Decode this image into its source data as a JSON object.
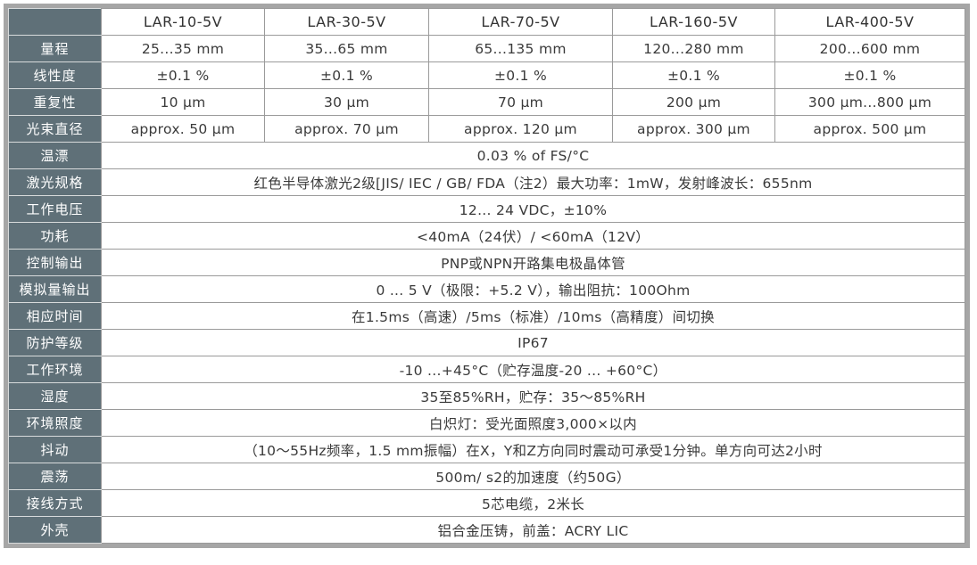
{
  "colors": {
    "label_column_bg": "#5f7078",
    "label_text": "#ffffff",
    "cell_text": "#3a3a3a",
    "outer_frame": "#a6a6a6",
    "cell_border": "#9a9a9a",
    "label_separator": "#d8dbdc"
  },
  "table": {
    "corner_label": "",
    "columns": [
      "LAR-10-5V",
      "LAR-30-5V",
      "LAR-70-5V",
      "LAR-160-5V",
      "LAR-400-5V"
    ],
    "rows": [
      {
        "label": "量程",
        "cells": [
          "25...35 mm",
          "35...65 mm",
          "65...135 mm",
          "120...280 mm",
          "200...600 mm"
        ]
      },
      {
        "label": "线性度",
        "cells": [
          "±0.1 %",
          "±0.1 %",
          "±0.1 %",
          "±0.1 %",
          "±0.1 %"
        ]
      },
      {
        "label": "重复性",
        "cells": [
          "10 μm",
          "30 μm",
          "70 μm",
          "200 μm",
          "300 μm...800 μm"
        ]
      },
      {
        "label": "光束直径",
        "cells": [
          "approx. 50 μm",
          "approx. 70 μm",
          "approx. 120 μm",
          "approx. 300 μm",
          "approx. 500 μm"
        ]
      },
      {
        "label": "温漂",
        "span": "0.03 % of FS/°C"
      },
      {
        "label": "激光规格",
        "span": "红色半导体激光2级[JIS/ IEC / GB/ FDA（注2）最大功率：1mW，发射峰波长：655nm"
      },
      {
        "label": "工作电压",
        "span": "12... 24 VDC，±10%"
      },
      {
        "label": "功耗",
        "span": "<40mA（24伏）/ <60mA（12V）"
      },
      {
        "label": "控制输出",
        "span": "PNP或NPN开路集电极晶体管"
      },
      {
        "label": "模拟量输出",
        "span": "0 ... 5 V（极限：+5.2 V），输出阻抗：100Ohm"
      },
      {
        "label": "相应时间",
        "span": "在1.5ms（高速）/5ms（标准）/10ms（高精度）间切换"
      },
      {
        "label": "防护等级",
        "span": "IP67"
      },
      {
        "label": "工作环境",
        "span": "-10 ...+45°C（贮存温度-20 ... +60°C）"
      },
      {
        "label": "湿度",
        "span": "35至85%RH，贮存：35〜85%RH"
      },
      {
        "label": "环境照度",
        "span": "白炽灯：受光面照度3,000×以内"
      },
      {
        "label": "抖动",
        "span": "（10〜55Hz频率，1.5 mm振幅）在X，Y和Z方向同时震动可承受1分钟。单方向可达2小时"
      },
      {
        "label": "震荡",
        "span": "500m/ s2的加速度（约50G）"
      },
      {
        "label": "接线方式",
        "span": "5芯电缆，2米长"
      },
      {
        "label": "外壳",
        "span": "铝合金压铸，前盖：ACRY LIC"
      }
    ]
  }
}
